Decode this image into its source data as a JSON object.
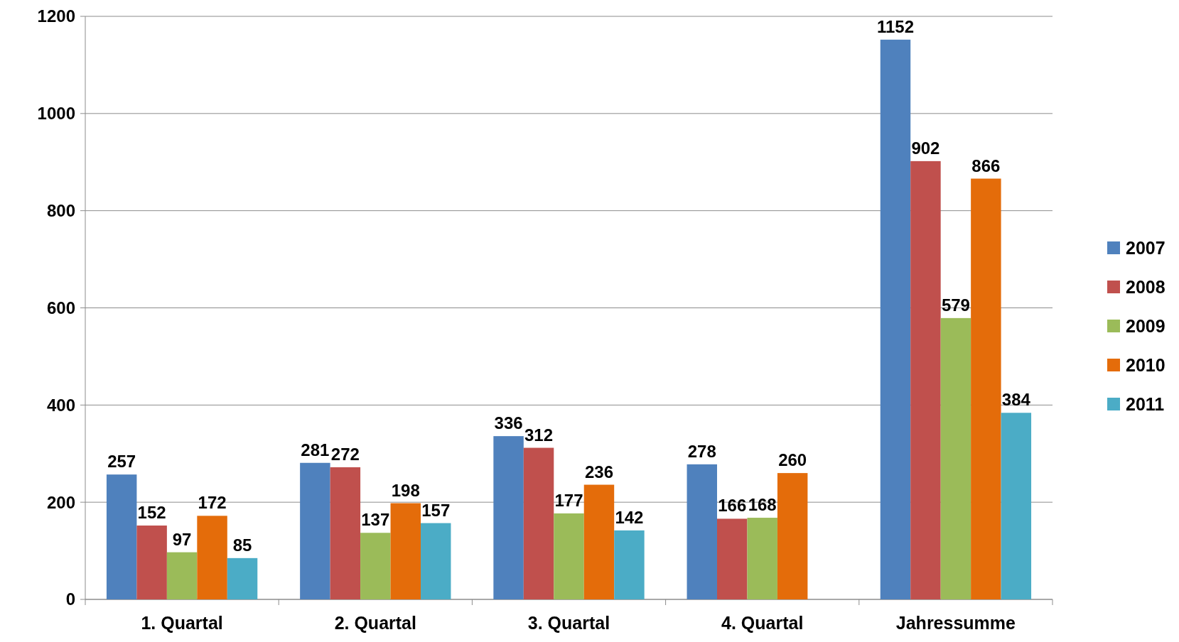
{
  "chart_data": {
    "type": "bar",
    "categories": [
      "1. Quartal",
      "2. Quartal",
      "3. Quartal",
      "4. Quartal",
      "Jahressumme"
    ],
    "series": [
      {
        "name": "2007",
        "color": "#4f81bd",
        "values": [
          257,
          281,
          336,
          278,
          1152
        ]
      },
      {
        "name": "2008",
        "color": "#c0504d",
        "values": [
          152,
          272,
          312,
          166,
          902
        ]
      },
      {
        "name": "2009",
        "color": "#9bbb59",
        "values": [
          97,
          137,
          177,
          168,
          579
        ]
      },
      {
        "name": "2010",
        "color": "#e46c0a",
        "values": [
          172,
          198,
          236,
          260,
          866
        ]
      },
      {
        "name": "2011",
        "color": "#4bacc6",
        "values": [
          85,
          157,
          142,
          null,
          384
        ]
      }
    ],
    "ylim": [
      0,
      1200
    ],
    "yticks": [
      0,
      200,
      400,
      600,
      800,
      1000,
      1200
    ],
    "grid": "y",
    "legend": "right",
    "data_labels": true
  }
}
